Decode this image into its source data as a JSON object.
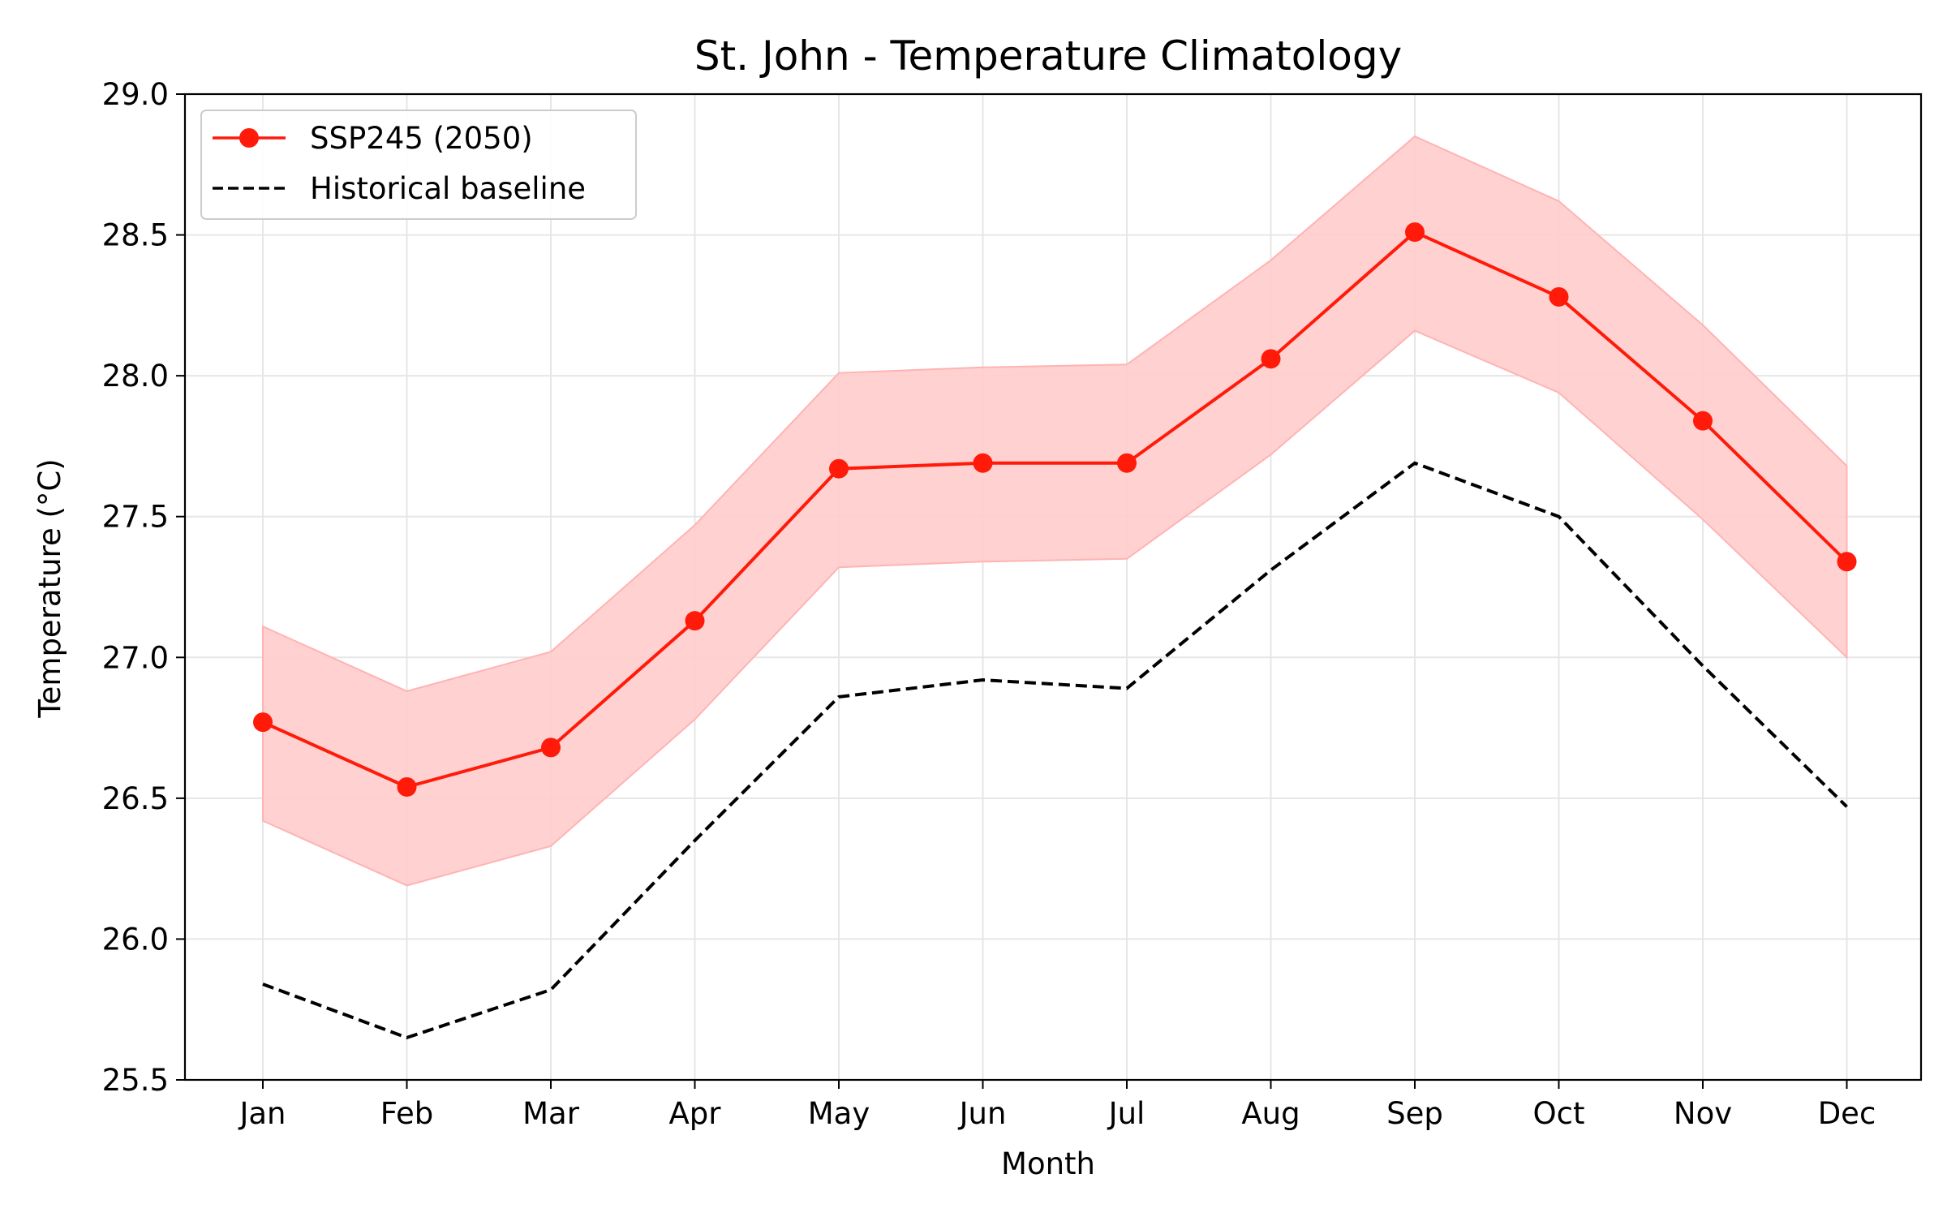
{
  "chart_data": {
    "type": "line",
    "title": "St. John - Temperature Climatology",
    "xlabel": "Month",
    "ylabel": "Temperature (°C)",
    "categories": [
      "Jan",
      "Feb",
      "Mar",
      "Apr",
      "May",
      "Jun",
      "Jul",
      "Aug",
      "Sep",
      "Oct",
      "Nov",
      "Dec"
    ],
    "ylim": [
      25.5,
      29.0
    ],
    "yticks": [
      25.5,
      26.0,
      26.5,
      27.0,
      27.5,
      28.0,
      28.5,
      29.0
    ],
    "ytick_labels": [
      "25.5",
      "26.0",
      "26.5",
      "27.0",
      "27.5",
      "28.0",
      "28.5",
      "29.0"
    ],
    "grid": true,
    "legend_position": "top-left",
    "series": [
      {
        "name": "SSP245 (2050)",
        "values": [
          26.77,
          26.54,
          26.68,
          27.13,
          27.67,
          27.69,
          27.69,
          28.06,
          28.51,
          28.28,
          27.84,
          27.34
        ],
        "band_lower": [
          26.42,
          26.19,
          26.33,
          26.78,
          27.32,
          27.34,
          27.35,
          27.72,
          28.16,
          27.94,
          27.49,
          27.0
        ],
        "band_upper": [
          27.11,
          26.88,
          27.02,
          27.47,
          28.01,
          28.03,
          28.04,
          28.41,
          28.85,
          28.62,
          28.18,
          27.68
        ],
        "color": "#ff1a0a",
        "band_color": "#ffcccc",
        "style": "solid-markers"
      },
      {
        "name": "Historical baseline",
        "values": [
          25.84,
          25.65,
          25.82,
          26.35,
          26.86,
          26.92,
          26.89,
          27.31,
          27.69,
          27.5,
          26.97,
          26.47
        ],
        "color": "#000000",
        "style": "dashed"
      }
    ]
  }
}
